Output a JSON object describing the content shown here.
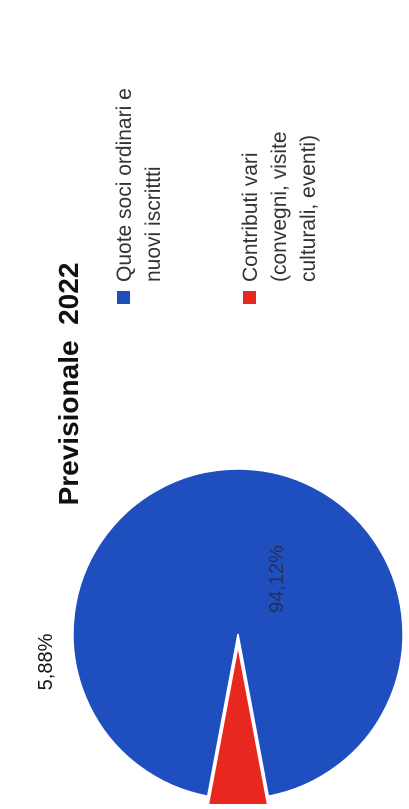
{
  "chart_data": {
    "type": "pie",
    "title": "Previsionale  2022",
    "categories": [
      "Quote soci ordinari e nuovi iscrittti",
      "Contributi vari (convegni, visite culturali, eventi)"
    ],
    "values": [
      94.12,
      5.88
    ],
    "value_labels": [
      "94,12%",
      "5,88%"
    ],
    "colors": [
      "#1f4fbf",
      "#e8281e"
    ],
    "legend": {
      "placement": "right",
      "entries": [
        {
          "label_lines": [
            "Quote soci ordinari e",
            "nuovi iscrittti"
          ],
          "color": "#1f4fbf"
        },
        {
          "label_lines": [
            "Contributi vari",
            "(convegni, visite",
            "culturali, eventi)"
          ],
          "color": "#e8281e"
        }
      ]
    }
  }
}
